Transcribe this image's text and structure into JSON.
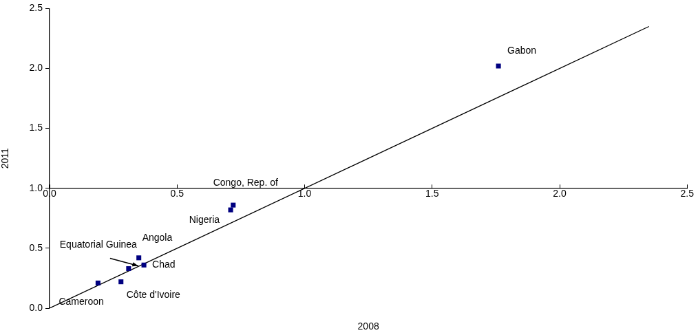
{
  "chart_data": {
    "type": "scatter",
    "xlabel": "2008",
    "ylabel": "2011",
    "marker": "square",
    "grid": false,
    "legend": false,
    "xlim": [
      0,
      2.5
    ],
    "xticks": [
      {
        "value": 0,
        "label": "0.0"
      },
      {
        "value": 0.5,
        "label": "0.5"
      },
      {
        "value": 1,
        "label": "1.0"
      },
      {
        "value": 1.5,
        "label": "1.5"
      },
      {
        "value": 2,
        "label": "2.0"
      },
      {
        "value": 2.5,
        "label": "2.5"
      }
    ],
    "ylim": [
      0,
      2.5
    ],
    "yticks": [
      {
        "value": 0,
        "label": "0.0"
      },
      {
        "value": 0.5,
        "label": "0.5"
      },
      {
        "value": 1,
        "label": "1.0"
      },
      {
        "value": 1.5,
        "label": "1.5"
      },
      {
        "value": 2,
        "label": "2.0"
      },
      {
        "value": 2.5,
        "label": "2.5"
      }
    ],
    "series": [
      {
        "type": "scatter",
        "color": "#000080",
        "x": [
          1.76,
          0.72,
          0.71,
          0.35,
          0.37,
          0.31,
          0.28,
          0.19
        ],
        "values": [
          2.02,
          0.86,
          0.82,
          0.42,
          0.36,
          0.33,
          0.22,
          0.21
        ]
      },
      {
        "type": "line",
        "color": "#000000",
        "marker": "none",
        "x": [
          0,
          2.35
        ],
        "values": [
          0,
          2.35
        ]
      }
    ],
    "annotations": [
      {
        "text": "Gabon",
        "x": 1.76,
        "y": 2.02
      },
      {
        "text": "Congo, Rep. of",
        "x": 0.72,
        "y": 0.86
      },
      {
        "text": "Nigeria",
        "x": 0.71,
        "y": 0.82
      },
      {
        "text": "Angola",
        "x": 0.35,
        "y": 0.42
      },
      {
        "text": "Chad",
        "x": 0.37,
        "y": 0.36
      },
      {
        "text": "Equatorial Guinea",
        "x": 0.31,
        "y": 0.33
      },
      {
        "text": "Côte d'Ivoire",
        "x": 0.28,
        "y": 0.22
      },
      {
        "text": "Cameroon",
        "x": 0.19,
        "y": 0.21
      }
    ]
  }
}
